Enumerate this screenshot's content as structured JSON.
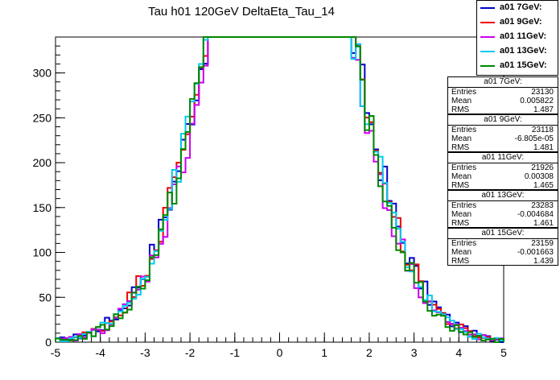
{
  "chart_data": {
    "type": "histogram",
    "title": "Tau h01 120GeV DeltaEta_Tau_14",
    "xlim": [
      -5,
      5
    ],
    "ylim": [
      0,
      340
    ],
    "x_ticks": [
      "-5",
      "-4",
      "-3",
      "-2",
      "-1",
      "0",
      "1",
      "2",
      "3",
      "4",
      "5"
    ],
    "y_ticks": [
      "0",
      "50",
      "100",
      "150",
      "200",
      "250",
      "300"
    ],
    "grid": false,
    "legend_position": "top-right",
    "series": [
      {
        "name": "a01 7GeV:",
        "color": "#0000cc",
        "entries": "23130",
        "mean": "0.005822",
        "rms": "1.487"
      },
      {
        "name": "a01 9GeV:",
        "color": "#ee0000",
        "entries": "23118",
        "mean": "-6.805e-05",
        "rms": "1.481"
      },
      {
        "name": "a01 11GeV:",
        "color": "#cc00ee",
        "entries": "21926",
        "mean": "0.00308",
        "rms": "1.465"
      },
      {
        "name": "a01 13GeV:",
        "color": "#00ccee",
        "entries": "23283",
        "mean": "-0.004684",
        "rms": "1.461"
      },
      {
        "name": "a01 15GeV:",
        "color": "#008800",
        "entries": "23159",
        "mean": "-0.001663",
        "rms": "1.439"
      }
    ],
    "bins": {
      "count": 100,
      "range": [
        -5,
        5
      ]
    },
    "peak_approx": 320,
    "stats_labels": {
      "entries": "Entries",
      "mean": "Mean",
      "rms": "RMS"
    }
  }
}
